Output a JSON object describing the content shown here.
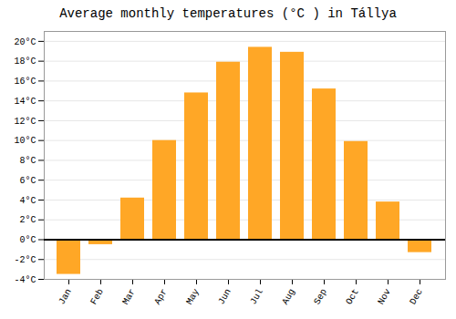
{
  "chart_data": {
    "type": "bar",
    "title": "Average monthly temperatures (°C ) in Tállya",
    "categories": [
      "Jan",
      "Feb",
      "Mar",
      "Apr",
      "May",
      "Jun",
      "Jul",
      "Aug",
      "Sep",
      "Oct",
      "Nov",
      "Dec"
    ],
    "values": [
      -3.5,
      -0.5,
      4.2,
      10.0,
      14.8,
      17.9,
      19.4,
      18.9,
      15.2,
      9.9,
      3.8,
      -1.3
    ],
    "color": "#FFA726",
    "ylim": [
      -4,
      21
    ],
    "yticks": [
      {
        "value": -4,
        "label": "-4°C"
      },
      {
        "value": -2,
        "label": "-2°C"
      },
      {
        "value": 0,
        "label": "0°C"
      },
      {
        "value": 2,
        "label": "2°C"
      },
      {
        "value": 4,
        "label": "4°C"
      },
      {
        "value": 6,
        "label": "6°C"
      },
      {
        "value": 8,
        "label": "8°C"
      },
      {
        "value": 10,
        "label": "10°C"
      },
      {
        "value": 12,
        "label": "12°C"
      },
      {
        "value": 14,
        "label": "14°C"
      },
      {
        "value": 16,
        "label": "16°C"
      },
      {
        "value": 18,
        "label": "18°C"
      },
      {
        "value": 20,
        "label": "20°C"
      }
    ],
    "grid": true
  }
}
